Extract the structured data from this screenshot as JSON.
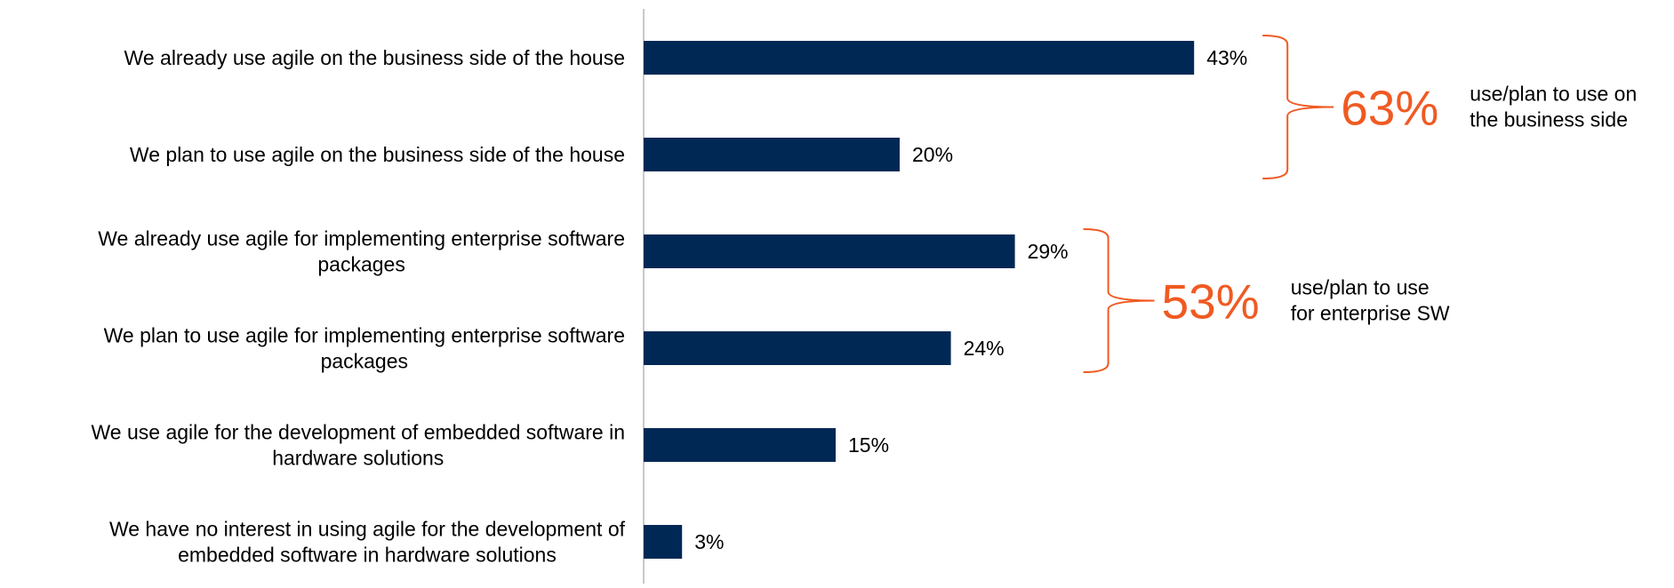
{
  "chart_data": {
    "type": "bar",
    "orientation": "horizontal",
    "title": "",
    "xlabel": "",
    "ylabel": "",
    "unit": "%",
    "xlim": [
      0,
      100
    ],
    "grid": false,
    "legend": "none",
    "categories": [
      [
        "We already use agile on the business side of the house"
      ],
      [
        "We plan to use agile on the business side of the house"
      ],
      [
        "We already use agile for implementing enterprise software",
        "packages"
      ],
      [
        "We plan to use agile for implementing enterprise software",
        "packages"
      ],
      [
        "We use agile for the development of embedded software in",
        "hardware solutions"
      ],
      [
        "We have no interest in using agile for the development of",
        "embedded software in hardware solutions"
      ]
    ],
    "values": [
      43,
      20,
      29,
      24,
      15,
      3
    ],
    "value_labels": [
      "43%",
      "20%",
      "29%",
      "24%",
      "15%",
      "3%"
    ],
    "annotations": [
      {
        "groups": [
          0,
          1
        ],
        "total": "63%",
        "note": [
          "use/plan to use on",
          "the business side"
        ]
      },
      {
        "groups": [
          2,
          3
        ],
        "total": "53%",
        "note": [
          "use/plan to use",
          "for enterprise SW"
        ]
      }
    ]
  },
  "colors": {
    "bar": "#002855",
    "accent": "#f05a22",
    "axis": "#c8c8c8",
    "text": "#000000"
  }
}
